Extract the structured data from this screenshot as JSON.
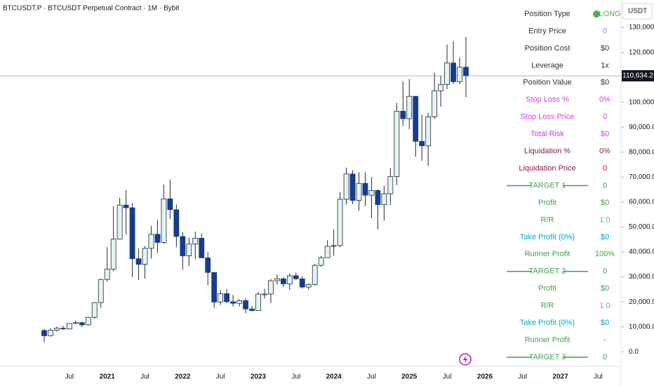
{
  "chart_data": {
    "type": "candlestick",
    "title": "BTCUSDT.P · BTCUSDT Perpetual Contract · 1M · Bybit",
    "currency": "USDT",
    "x": [
      "2020-03",
      "2020-04",
      "2020-05",
      "2020-06",
      "2020-07",
      "2020-08",
      "2020-09",
      "2020-10",
      "2020-11",
      "2020-12",
      "2021-01",
      "2021-02",
      "2021-03",
      "2021-04",
      "2021-05",
      "2021-06",
      "2021-07",
      "2021-08",
      "2021-09",
      "2021-10",
      "2021-11",
      "2021-12",
      "2022-01",
      "2022-02",
      "2022-03",
      "2022-04",
      "2022-05",
      "2022-06",
      "2022-07",
      "2022-08",
      "2022-09",
      "2022-10",
      "2022-11",
      "2022-12",
      "2023-01",
      "2023-02",
      "2023-03",
      "2023-04",
      "2023-05",
      "2023-06",
      "2023-07",
      "2023-08",
      "2023-09",
      "2023-10",
      "2023-11",
      "2023-12",
      "2024-01",
      "2024-02",
      "2024-03",
      "2024-04",
      "2024-05",
      "2024-06",
      "2024-07",
      "2024-08",
      "2024-09",
      "2024-10",
      "2024-11",
      "2024-12",
      "2025-01",
      "2025-02",
      "2025-03",
      "2025-04",
      "2025-05",
      "2025-06",
      "2025-07",
      "2025-08",
      "2025-09",
      "2025-10"
    ],
    "open": [
      8540,
      6410,
      8630,
      9450,
      9140,
      11350,
      11660,
      10780,
      13800,
      19700,
      28990,
      33110,
      45140,
      58800,
      57720,
      37300,
      35040,
      41460,
      47100,
      43820,
      61300,
      56950,
      46210,
      38470,
      43160,
      45510,
      37640,
      31790,
      19930,
      23300,
      20050,
      19420,
      20490,
      17160,
      16540,
      23120,
      23140,
      28460,
      29250,
      27210,
      30470,
      29230,
      25930,
      26960,
      34640,
      37720,
      42280,
      42580,
      61130,
      71280,
      60670,
      67500,
      62760,
      64640,
      58970,
      63330,
      70220,
      96450,
      93430,
      102400,
      84350,
      82550,
      94200,
      104600,
      107150,
      115750,
      108250,
      114050
    ],
    "high": [
      9200,
      9470,
      10080,
      10380,
      11460,
      12480,
      12080,
      14100,
      19900,
      29300,
      41950,
      58350,
      61780,
      64850,
      59600,
      41330,
      42400,
      50500,
      52920,
      67000,
      69000,
      59050,
      47990,
      45800,
      48190,
      47440,
      39980,
      31960,
      24670,
      25200,
      22800,
      21080,
      21480,
      18390,
      23960,
      25250,
      29190,
      31000,
      29830,
      31390,
      31800,
      30220,
      27480,
      35200,
      38430,
      44730,
      48970,
      64000,
      73800,
      72800,
      71980,
      71980,
      70000,
      65100,
      66500,
      73620,
      99800,
      108300,
      109350,
      102500,
      95000,
      95750,
      111900,
      110500,
      123200,
      124450,
      117900,
      126200
    ],
    "low": [
      3800,
      6150,
      8110,
      8830,
      8960,
      11100,
      9880,
      10520,
      13240,
      17600,
      28130,
      32300,
      45000,
      47050,
      30000,
      28800,
      29280,
      37330,
      39600,
      43280,
      53250,
      42000,
      32900,
      34320,
      37160,
      37580,
      26700,
      17570,
      18780,
      19520,
      18150,
      18180,
      15480,
      16250,
      16500,
      21350,
      19550,
      26940,
      25800,
      24750,
      28860,
      25300,
      24900,
      26550,
      34100,
      37620,
      38500,
      41880,
      59000,
      59200,
      56550,
      58400,
      53500,
      49000,
      52550,
      58880,
      66800,
      90500,
      89200,
      78200,
      76600,
      74500,
      93350,
      98200,
      105250,
      107300,
      107250,
      102000
    ],
    "close": [
      6410,
      8630,
      9450,
      9140,
      11350,
      11660,
      10780,
      13800,
      19700,
      28990,
      33110,
      45140,
      58800,
      57720,
      37300,
      35040,
      41460,
      47100,
      43820,
      61300,
      56950,
      46210,
      38470,
      43160,
      45510,
      37640,
      31790,
      19930,
      23300,
      20050,
      19420,
      20490,
      17160,
      16540,
      23120,
      23140,
      28460,
      29250,
      27210,
      30470,
      29230,
      25930,
      26960,
      34640,
      37720,
      42280,
      42580,
      61130,
      71280,
      60670,
      67500,
      62760,
      64640,
      58970,
      63330,
      70220,
      96450,
      93430,
      102400,
      84350,
      82550,
      94200,
      104600,
      107150,
      115750,
      108250,
      114050,
      110634.2
    ],
    "up_color": "#e3f4f1",
    "down_color": "#173c8c",
    "outline_color": "#1e2a36",
    "last_price": {
      "value": 110634.2,
      "label": "110,634.2"
    },
    "ylim": [
      -5000,
      141000
    ],
    "yticks": [
      {
        "value": 0,
        "label": "0.0"
      },
      {
        "value": 10000,
        "label": "10,000.0"
      },
      {
        "value": 20000,
        "label": "20,000.0"
      },
      {
        "value": 30000,
        "label": "30,000.0"
      },
      {
        "value": 40000,
        "label": "40,000.0"
      },
      {
        "value": 50000,
        "label": "50,000.0"
      },
      {
        "value": 60000,
        "label": "60,000.0"
      },
      {
        "value": 70000,
        "label": "70,000.0"
      },
      {
        "value": 80000,
        "label": "80,000.0"
      },
      {
        "value": 90000,
        "label": "90,000.0"
      },
      {
        "value": 100000,
        "label": "100,000.0"
      },
      {
        "value": 120000,
        "label": "120,000.0"
      },
      {
        "value": 130000,
        "label": "130,000.0"
      }
    ],
    "xticks": [
      {
        "value": "2020-07",
        "label": "Jul"
      },
      {
        "value": "2021-01",
        "label": "2021"
      },
      {
        "value": "2021-07",
        "label": "Jul"
      },
      {
        "value": "2022-01",
        "label": "2022"
      },
      {
        "value": "2022-07",
        "label": "Jul"
      },
      {
        "value": "2023-01",
        "label": "2023"
      },
      {
        "value": "2023-07",
        "label": "Jul"
      },
      {
        "value": "2024-01",
        "label": "2024"
      },
      {
        "value": "2024-07",
        "label": "Jul"
      },
      {
        "value": "2025-01",
        "label": "2025"
      },
      {
        "value": "2025-07",
        "label": "Jul"
      },
      {
        "value": "2026-01",
        "label": "2026"
      },
      {
        "value": "2026-07",
        "label": "Jul"
      },
      {
        "value": "2027-01",
        "label": "2027"
      },
      {
        "value": "2027-07",
        "label": "Jul"
      }
    ]
  },
  "position_table": {
    "rows": [
      {
        "label": "Position Type",
        "value": "LONG",
        "label_color": "#333333",
        "value_color": "#4caf50"
      },
      {
        "label": "Entry Price",
        "value": "0",
        "label_color": "#333333",
        "value_color": "#3fa9d8"
      },
      {
        "label": "Position Cost",
        "value": "$0",
        "label_color": "#333333",
        "value_color": "#333333"
      },
      {
        "label": "Leverage",
        "value": "1x",
        "label_color": "#333333",
        "value_color": "#333333"
      },
      {
        "label": "Position Value",
        "value": "$0",
        "label_color": "#333333",
        "value_color": "#333333"
      },
      {
        "label": "Stop Loss %",
        "value": "0%",
        "label_color": "#d63adf",
        "value_color": "#d63adf"
      },
      {
        "label": "Stop Loss Price",
        "value": "0",
        "label_color": "#d63adf",
        "value_color": "#d63adf"
      },
      {
        "label": "Total Risk",
        "value": "$0",
        "label_color": "#d63adf",
        "value_color": "#d63adf"
      },
      {
        "label": "Liquidation %",
        "value": "0%",
        "label_color": "#8b1a4a",
        "value_color": "#8b1a4a"
      },
      {
        "label": "Liquidation Price",
        "value": "0",
        "label_color": "#8b1a4a",
        "value_color": "#d50000"
      },
      {
        "label": "TARGET 1",
        "value": "0",
        "label_color": "#43a047",
        "value_color": "#43a047"
      },
      {
        "label": "Profit",
        "value": "$0",
        "label_color": "#43a047",
        "value_color": "#43a047"
      },
      {
        "label": "R/R",
        "value": "1:0",
        "label_color": "#43a047",
        "value_color": "#66bb6a"
      },
      {
        "label": "Take Profit (0%)",
        "value": "$0",
        "label_color": "#00acc1",
        "value_color": "#00acc1"
      },
      {
        "label": "Runner Profit",
        "value": "100%",
        "label_color": "#43a047",
        "value_color": "#43a047"
      },
      {
        "label": "TARGET 2",
        "value": "0",
        "label_color": "#43a047",
        "value_color": "#43a047"
      },
      {
        "label": "Profit",
        "value": "$0",
        "label_color": "#43a047",
        "value_color": "#43a047"
      },
      {
        "label": "R/R",
        "value": "1:0",
        "label_color": "#43a047",
        "value_color": "#66bb6a"
      },
      {
        "label": "Take Profit (0%)",
        "value": "$0",
        "label_color": "#00acc1",
        "value_color": "#00acc1"
      },
      {
        "label": "Runner Profit",
        "value": "-",
        "label_color": "#43a047",
        "value_color": "#43a047"
      },
      {
        "label": "TARGET 3",
        "value": "0",
        "label_color": "#43a047",
        "value_color": "#43a047"
      }
    ]
  }
}
